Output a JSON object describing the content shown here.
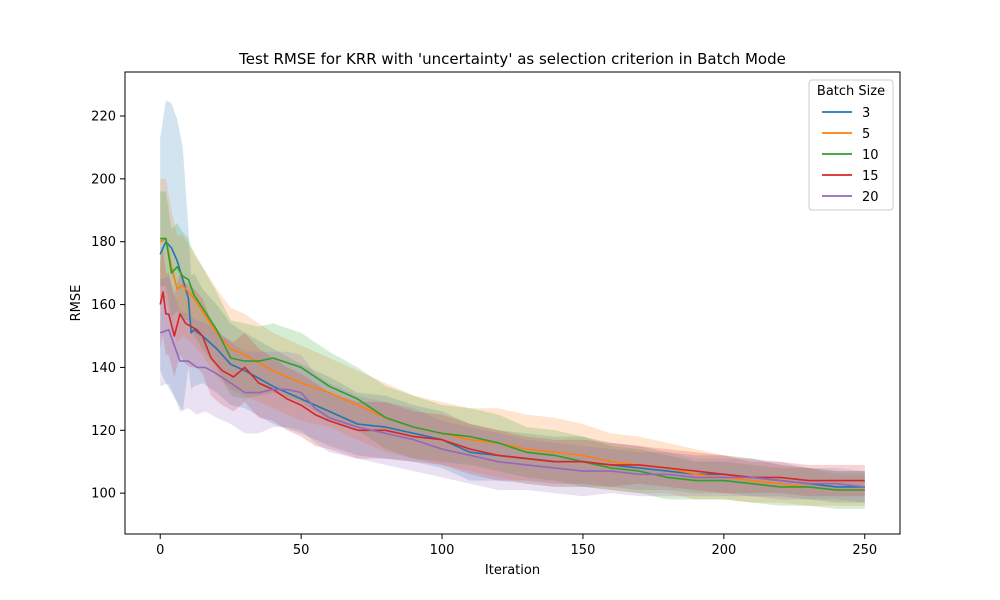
{
  "chart_data": {
    "type": "line",
    "title": "Test RMSE for KRR with 'uncertainty' as selection criterion in Batch Mode",
    "xlabel": "Iteration",
    "ylabel": "RMSE",
    "xlim": [
      -12.5,
      262.5
    ],
    "ylim": [
      87,
      234
    ],
    "xticks": [
      0,
      50,
      100,
      150,
      200,
      250
    ],
    "yticks": [
      100,
      120,
      140,
      160,
      180,
      200,
      220
    ],
    "legend": {
      "title": "Batch Size",
      "position": "top-right"
    },
    "grid": false,
    "band": "shaded ± spread around each series",
    "series": [
      {
        "name": "3",
        "color": "#1f77b4",
        "x": [
          0,
          2,
          4,
          6,
          8,
          10,
          11,
          12,
          15,
          20,
          25,
          30,
          40,
          50,
          60,
          70,
          80,
          90,
          100,
          110,
          120,
          130,
          140,
          150,
          160,
          170,
          180,
          190,
          200,
          210,
          220,
          230,
          240,
          250
        ],
        "y": [
          176,
          180,
          178,
          174,
          168,
          162,
          151,
          152,
          150,
          146,
          141,
          139,
          134,
          130,
          126,
          122,
          121,
          119,
          117,
          113,
          112,
          111,
          110,
          110,
          109,
          108,
          107,
          106,
          106,
          105,
          104,
          103,
          102,
          102
        ],
        "band": [
          37,
          45,
          46,
          45,
          42,
          22,
          18,
          18,
          15,
          14,
          13,
          12,
          12,
          11,
          11,
          10,
          10,
          9,
          9,
          9,
          8,
          8,
          8,
          8,
          7,
          7,
          6,
          6,
          6,
          6,
          5,
          5,
          5,
          5
        ]
      },
      {
        "name": "5",
        "color": "#ff7f0e",
        "x": [
          0,
          2,
          4,
          6,
          8,
          10,
          12,
          15,
          20,
          25,
          30,
          40,
          50,
          60,
          70,
          80,
          90,
          100,
          110,
          120,
          130,
          140,
          150,
          160,
          170,
          180,
          190,
          200,
          210,
          220,
          230,
          240,
          250
        ],
        "y": [
          180,
          181,
          172,
          165,
          166,
          164,
          162,
          158,
          151,
          146,
          144,
          139,
          135,
          132,
          128,
          124,
          121,
          119,
          117,
          116,
          114,
          113,
          112,
          110,
          109,
          108,
          106,
          105,
          104,
          103,
          102,
          101,
          101
        ],
        "band": [
          20,
          19,
          18,
          17,
          16,
          15,
          15,
          14,
          14,
          13,
          13,
          12,
          12,
          11,
          11,
          11,
          10,
          10,
          10,
          11,
          11,
          11,
          10,
          9,
          9,
          8,
          8,
          7,
          7,
          6,
          6,
          5,
          5
        ]
      },
      {
        "name": "10",
        "color": "#2ca02c",
        "x": [
          0,
          2,
          4,
          6,
          8,
          10,
          12,
          15,
          20,
          25,
          30,
          35,
          40,
          50,
          60,
          70,
          80,
          90,
          100,
          110,
          120,
          130,
          140,
          150,
          160,
          170,
          180,
          190,
          200,
          210,
          220,
          230,
          240,
          250
        ],
        "y": [
          181,
          181,
          170,
          172,
          169,
          168,
          163,
          159,
          152,
          143,
          142,
          142,
          143,
          140,
          134,
          130,
          124,
          121,
          119,
          118,
          116,
          113,
          112,
          110,
          108,
          107,
          105,
          104,
          104,
          103,
          102,
          102,
          101,
          101
        ],
        "band": [
          15,
          15,
          14,
          14,
          14,
          13,
          13,
          13,
          12,
          12,
          12,
          11,
          11,
          11,
          11,
          10,
          10,
          10,
          9,
          9,
          9,
          8,
          8,
          8,
          7,
          7,
          7,
          6,
          6,
          6,
          6,
          6,
          6,
          6
        ]
      },
      {
        "name": "15",
        "color": "#d62728",
        "x": [
          0,
          1,
          2,
          3,
          5,
          7,
          9,
          11,
          13,
          15,
          18,
          22,
          26,
          30,
          35,
          40,
          45,
          50,
          55,
          60,
          70,
          80,
          90,
          100,
          110,
          120,
          130,
          140,
          150,
          160,
          170,
          180,
          190,
          200,
          210,
          220,
          230,
          240,
          250
        ],
        "y": [
          160,
          164,
          157,
          157,
          150,
          157,
          154,
          153,
          152,
          150,
          143,
          139,
          137,
          140,
          135,
          133,
          130,
          128,
          125,
          123,
          120,
          120,
          118,
          117,
          114,
          112,
          111,
          110,
          110,
          109,
          109,
          108,
          107,
          106,
          105,
          105,
          104,
          104,
          104
        ],
        "band": [
          14,
          14,
          13,
          13,
          13,
          13,
          13,
          13,
          12,
          12,
          12,
          11,
          11,
          11,
          11,
          10,
          10,
          10,
          10,
          9,
          9,
          9,
          8,
          8,
          8,
          8,
          7,
          7,
          7,
          7,
          6,
          6,
          6,
          6,
          5,
          5,
          5,
          5,
          5
        ]
      },
      {
        "name": "20",
        "color": "#9467bd",
        "x": [
          0,
          3,
          5,
          7,
          10,
          13,
          16,
          20,
          25,
          30,
          35,
          40,
          45,
          50,
          55,
          60,
          70,
          80,
          90,
          100,
          110,
          120,
          130,
          140,
          150,
          160,
          170,
          180,
          190,
          200,
          210,
          220,
          230,
          240,
          250
        ],
        "y": [
          151,
          152,
          147,
          142,
          142,
          140,
          140,
          138,
          135,
          132,
          132,
          133,
          133,
          132,
          127,
          124,
          121,
          119,
          117,
          114,
          112,
          110,
          109,
          108,
          107,
          107,
          106,
          106,
          105,
          105,
          105,
          104,
          103,
          103,
          102
        ],
        "band": [
          17,
          17,
          16,
          16,
          15,
          15,
          14,
          14,
          13,
          13,
          13,
          12,
          12,
          12,
          11,
          11,
          10,
          10,
          10,
          9,
          9,
          9,
          8,
          8,
          8,
          7,
          7,
          7,
          6,
          6,
          6,
          6,
          5,
          5,
          5
        ]
      }
    ]
  }
}
